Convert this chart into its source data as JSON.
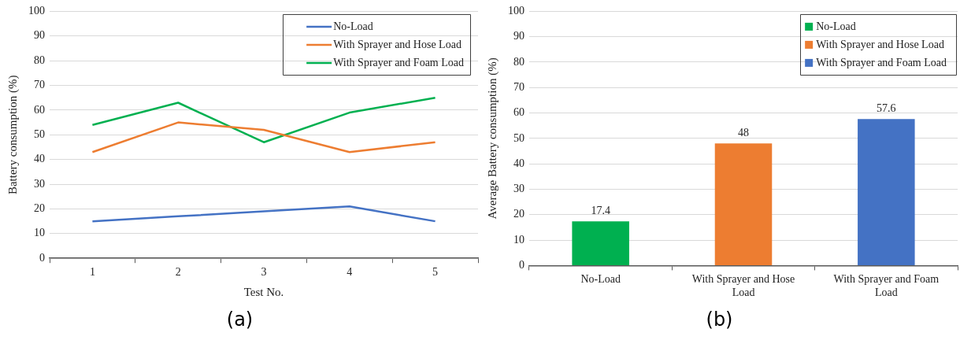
{
  "chart_data": [
    {
      "type": "line",
      "xlabel": "Test No.",
      "ylabel": "Battery consumption (%)",
      "categories": [
        "1",
        "2",
        "3",
        "4",
        "5"
      ],
      "series": [
        {
          "name": "No-Load",
          "color": "#4472c4",
          "values": [
            15,
            17,
            19,
            21,
            15
          ]
        },
        {
          "name": "With Sprayer and Hose Load",
          "color": "#ed7d31",
          "values": [
            43,
            55,
            52,
            43,
            47
          ]
        },
        {
          "name": "With Sprayer and Foam Load",
          "color": "#00b050",
          "values": [
            54,
            63,
            47,
            59,
            65
          ]
        }
      ],
      "ylim": [
        0,
        100
      ],
      "yticks": [
        0,
        10,
        20,
        30,
        40,
        50,
        60,
        70,
        80,
        90,
        100
      ],
      "grid": "y",
      "legend": "top right",
      "marker": "none",
      "line_style": "solid",
      "annotations": [
        "(a)"
      ]
    },
    {
      "type": "bar",
      "ylabel": "Average Battery consumption (%)",
      "categories": [
        "No-Load",
        "With Sprayer and Hose Load",
        "With Sprayer and Foam Load"
      ],
      "series": [
        {
          "name": "No-Load",
          "color": "#00b050",
          "values": [
            17.4,
            null,
            null
          ]
        },
        {
          "name": "With Sprayer and Hose Load",
          "color": "#ed7d31",
          "values": [
            null,
            48,
            null
          ]
        },
        {
          "name": "With Sprayer and Foam Load",
          "color": "#4472c4",
          "values": [
            null,
            null,
            57.6
          ]
        }
      ],
      "data_labels": true,
      "ylim": [
        0,
        100
      ],
      "yticks": [
        0,
        10,
        20,
        30,
        40,
        50,
        60,
        70,
        80,
        90,
        100
      ],
      "grid": "y",
      "legend": "top right",
      "annotations": [
        "(b)"
      ]
    }
  ]
}
